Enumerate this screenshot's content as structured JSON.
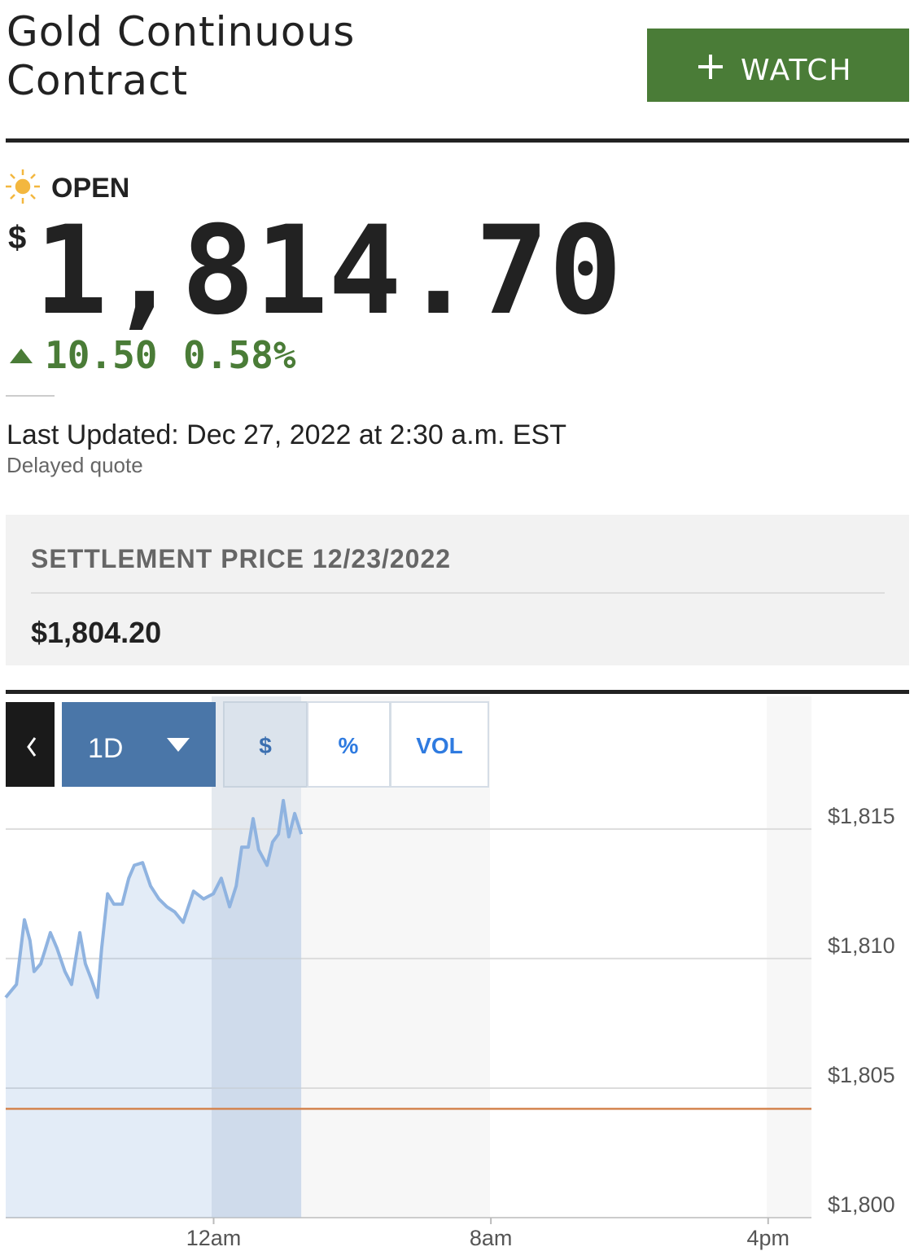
{
  "header": {
    "title_line1": "Gold Continuous",
    "title_line2": "Contract",
    "watch_button": "WATCH"
  },
  "status": "OPEN",
  "quote": {
    "currency": "$",
    "price": "1,814.70",
    "change": "10.50",
    "change_percent": "0.58%"
  },
  "last_updated": "Last Updated: Dec 27, 2022 at 2:30 a.m. EST",
  "delayed": "Delayed quote",
  "settlement": {
    "label": "SETTLEMENT PRICE 12/23/2022",
    "value": "$1,804.20"
  },
  "chart_controls": {
    "range": "1D",
    "buttons": [
      "$",
      "%",
      "VOL"
    ]
  },
  "chart_data": {
    "type": "line",
    "x": [
      -6.0,
      -5.69,
      -5.46,
      -5.3,
      -5.18,
      -4.99,
      -4.87,
      -4.71,
      -4.52,
      -4.29,
      -4.1,
      -3.86,
      -3.7,
      -3.53,
      -3.35,
      -3.23,
      -3.06,
      -2.88,
      -2.64,
      -2.45,
      -2.29,
      -2.05,
      -1.82,
      -1.58,
      -1.35,
      -1.12,
      -0.88,
      -0.58,
      -0.29,
      -0.01,
      0.22,
      0.46,
      0.65,
      0.81,
      1.0,
      1.14,
      1.3,
      1.54,
      1.7,
      1.87,
      2.01,
      2.17,
      2.34,
      2.53
    ],
    "series": [
      {
        "color": "#8fb3e0",
        "values": [
          1808.5,
          1809.0,
          1811.5,
          1810.7,
          1809.5,
          1809.8,
          1810.3,
          1811.0,
          1810.4,
          1809.5,
          1809.0,
          1811.0,
          1809.8,
          1809.2,
          1808.5,
          1810.4,
          1812.5,
          1812.1,
          1812.1,
          1813.1,
          1813.6,
          1813.7,
          1812.8,
          1812.3,
          1812.0,
          1811.8,
          1811.4,
          1812.6,
          1812.3,
          1812.5,
          1813.1,
          1812.0,
          1812.8,
          1814.3,
          1814.3,
          1815.4,
          1814.2,
          1813.6,
          1814.5,
          1814.8,
          1816.1,
          1814.7,
          1815.6,
          1814.8
        ]
      }
    ],
    "reference_line": {
      "value": 1804.2,
      "color": "#d4844f"
    },
    "xlim": [
      -6,
      17.25
    ],
    "xticks": [
      {
        "value": 0,
        "label": "12am"
      },
      {
        "value": 8,
        "label": "8am"
      },
      {
        "value": 16,
        "label": "4pm"
      }
    ],
    "ylim": [
      1800,
      1819.9
    ],
    "yticks": [
      {
        "value": 1800,
        "label": "$1,800"
      },
      {
        "value": 1805,
        "label": "$1,805"
      },
      {
        "value": 1810,
        "label": "$1,810"
      },
      {
        "value": 1815,
        "label": "$1,815"
      }
    ],
    "grid": true
  }
}
